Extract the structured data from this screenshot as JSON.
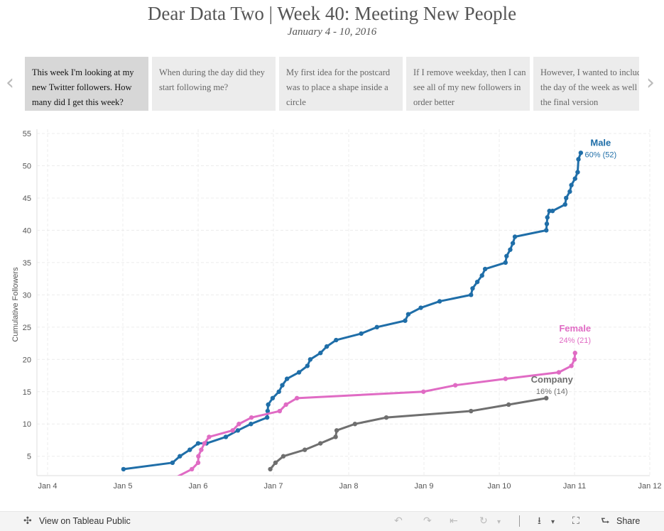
{
  "header": {
    "title": "Dear Data Two | Week 40: Meeting New People",
    "subtitle": "January 4 - 10, 2016"
  },
  "story": {
    "prev_icon": "chevron-left-icon",
    "next_icon": "chevron-right-icon",
    "cards": [
      {
        "text": "This week I'm looking at my new Twitter followers. How many did I get this week?",
        "active": true
      },
      {
        "text": "When during the day did they start following me?",
        "active": false
      },
      {
        "text": "My first idea for the postcard was to place a shape inside a circle",
        "active": false
      },
      {
        "text": "If I remove weekday, then I can see all of my new followers in order better",
        "active": false
      },
      {
        "text": "However, I wanted to include the day of the week as well in the final version",
        "active": false
      }
    ]
  },
  "chart_data": {
    "type": "line",
    "ylabel": "Cumulative Followers",
    "x_tick_labels": [
      "Jan 4",
      "Jan 5",
      "Jan 6",
      "Jan 7",
      "Jan 8",
      "Jan 9",
      "Jan 10",
      "Jan 11",
      "Jan 12"
    ],
    "xlim": [
      "2016-01-04",
      "2016-01-12"
    ],
    "ylim": [
      2,
      55
    ],
    "y_ticks": [
      5,
      10,
      15,
      20,
      25,
      30,
      35,
      40,
      45,
      50,
      55
    ],
    "grid": true,
    "series": [
      {
        "name": "Male",
        "label": "60% (52)",
        "color": "#1f6ea8",
        "points": [
          [
            "2016-01-05 00:12",
            3
          ],
          [
            "2016-01-05 15:50",
            4
          ],
          [
            "2016-01-05 18:10",
            5
          ],
          [
            "2016-01-05 21:20",
            6
          ],
          [
            "2016-01-06 00:00",
            7
          ],
          [
            "2016-01-06 02:40",
            7
          ],
          [
            "2016-01-06 08:50",
            8
          ],
          [
            "2016-01-06 12:40",
            9
          ],
          [
            "2016-01-06 16:50",
            10
          ],
          [
            "2016-01-06 22:00",
            11
          ],
          [
            "2016-01-06 22:10",
            12
          ],
          [
            "2016-01-06 22:20",
            13
          ],
          [
            "2016-01-06 23:45",
            14
          ],
          [
            "2016-01-07 01:45",
            15
          ],
          [
            "2016-01-07 02:50",
            16
          ],
          [
            "2016-01-07 04:20",
            17
          ],
          [
            "2016-01-07 08:10",
            18
          ],
          [
            "2016-01-07 10:50",
            19
          ],
          [
            "2016-01-07 11:45",
            20
          ],
          [
            "2016-01-07 15:00",
            21
          ],
          [
            "2016-01-07 17:00",
            22
          ],
          [
            "2016-01-07 20:00",
            23
          ],
          [
            "2016-01-08 04:00",
            24
          ],
          [
            "2016-01-08 09:00",
            25
          ],
          [
            "2016-01-08 18:00",
            26
          ],
          [
            "2016-01-08 19:00",
            27
          ],
          [
            "2016-01-08 23:00",
            28
          ],
          [
            "2016-01-09 05:00",
            29
          ],
          [
            "2016-01-09 15:00",
            30
          ],
          [
            "2016-01-09 15:30",
            31
          ],
          [
            "2016-01-09 17:00",
            32
          ],
          [
            "2016-01-09 18:30",
            33
          ],
          [
            "2016-01-09 19:30",
            34
          ],
          [
            "2016-01-10 02:00",
            35
          ],
          [
            "2016-01-10 02:20",
            36
          ],
          [
            "2016-01-10 03:30",
            37
          ],
          [
            "2016-01-10 04:20",
            38
          ],
          [
            "2016-01-10 05:00",
            39
          ],
          [
            "2016-01-10 15:00",
            40
          ],
          [
            "2016-01-10 15:10",
            41
          ],
          [
            "2016-01-10 15:20",
            42
          ],
          [
            "2016-01-10 16:00",
            43
          ],
          [
            "2016-01-10 17:00",
            43
          ],
          [
            "2016-01-10 21:00",
            44
          ],
          [
            "2016-01-10 21:20",
            45
          ],
          [
            "2016-01-10 22:30",
            46
          ],
          [
            "2016-01-10 23:00",
            47
          ],
          [
            "2016-01-11 00:10",
            48
          ],
          [
            "2016-01-11 01:00",
            49
          ],
          [
            "2016-01-11 01:15",
            51
          ],
          [
            "2016-01-11 02:00",
            52
          ]
        ]
      },
      {
        "name": "Female",
        "label": "24% (21)",
        "color": "#e06bc4",
        "points": [
          [
            "2016-01-05 14:00",
            1
          ],
          [
            "2016-01-05 22:00",
            3
          ],
          [
            "2016-01-06 00:00",
            4
          ],
          [
            "2016-01-06 00:05",
            5
          ],
          [
            "2016-01-06 01:00",
            6
          ],
          [
            "2016-01-06 02:00",
            7
          ],
          [
            "2016-01-06 03:30",
            8
          ],
          [
            "2016-01-06 11:00",
            9
          ],
          [
            "2016-01-06 13:00",
            10
          ],
          [
            "2016-01-06 17:00",
            11
          ],
          [
            "2016-01-07 02:00",
            12
          ],
          [
            "2016-01-07 04:00",
            13
          ],
          [
            "2016-01-07 07:30",
            14
          ],
          [
            "2016-01-08 23:50",
            15
          ],
          [
            "2016-01-09 10:00",
            16
          ],
          [
            "2016-01-10 02:00",
            17
          ],
          [
            "2016-01-10 19:00",
            18
          ],
          [
            "2016-01-10 23:00",
            19
          ],
          [
            "2016-01-11 00:00",
            20
          ],
          [
            "2016-01-11 00:10",
            21
          ]
        ]
      },
      {
        "name": "Company",
        "label": "16% (14)",
        "color": "#6f6f6f",
        "points": [
          [
            "2016-01-06 23:00",
            3
          ],
          [
            "2016-01-07 00:40",
            4
          ],
          [
            "2016-01-07 03:10",
            5
          ],
          [
            "2016-01-07 10:00",
            6
          ],
          [
            "2016-01-07 15:00",
            7
          ],
          [
            "2016-01-07 19:50",
            8
          ],
          [
            "2016-01-07 20:10",
            9
          ],
          [
            "2016-01-08 02:00",
            10
          ],
          [
            "2016-01-08 12:00",
            11
          ],
          [
            "2016-01-09 15:00",
            12
          ],
          [
            "2016-01-10 03:00",
            13
          ],
          [
            "2016-01-10 15:00",
            14
          ]
        ]
      }
    ]
  },
  "footer": {
    "view_label": "View on Tableau Public",
    "share_label": "Share",
    "icons": {
      "logo": "tableau-logo-icon",
      "undo": "undo-icon",
      "redo": "redo-icon",
      "revert": "revert-icon",
      "refresh": "refresh-icon",
      "download": "download-icon",
      "fullscreen": "fullscreen-icon",
      "share": "share-icon"
    }
  }
}
